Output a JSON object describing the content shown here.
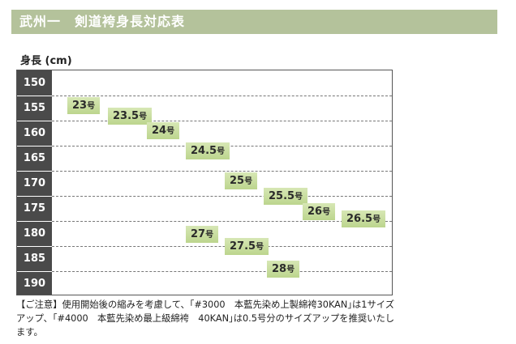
{
  "title": "武州一　剣道袴身長対応表",
  "y_axis_label": "身長 (cm)",
  "chart_data": {
    "type": "table",
    "ylabel": "身長 (cm)",
    "heights": [
      150,
      155,
      160,
      165,
      170,
      175,
      180,
      185,
      190
    ],
    "unit_label": "号",
    "sizes": [
      {
        "label": "23",
        "height": 154.5
      },
      {
        "label": "23.5",
        "height": 156.5
      },
      {
        "label": "24",
        "height": 159.5
      },
      {
        "label": "24.5",
        "height": 163.5
      },
      {
        "label": "25",
        "height": 169.5
      },
      {
        "label": "25.5",
        "height": 172.5
      },
      {
        "label": "26",
        "height": 175.5
      },
      {
        "label": "26.5",
        "height": 177
      },
      {
        "label": "27",
        "height": 180
      },
      {
        "label": "27.5",
        "height": 182.5
      },
      {
        "label": "28",
        "height": 187
      }
    ]
  },
  "note": "【ご注意】使用開始後の縮みを考慮して、｢#3000　本藍先染め上製綿袴30KAN｣は1サイズアップ、｢#4000　本藍先染め最上級綿袴　40KAN｣は0.5号分のサイズアップを推奨いたします。"
}
